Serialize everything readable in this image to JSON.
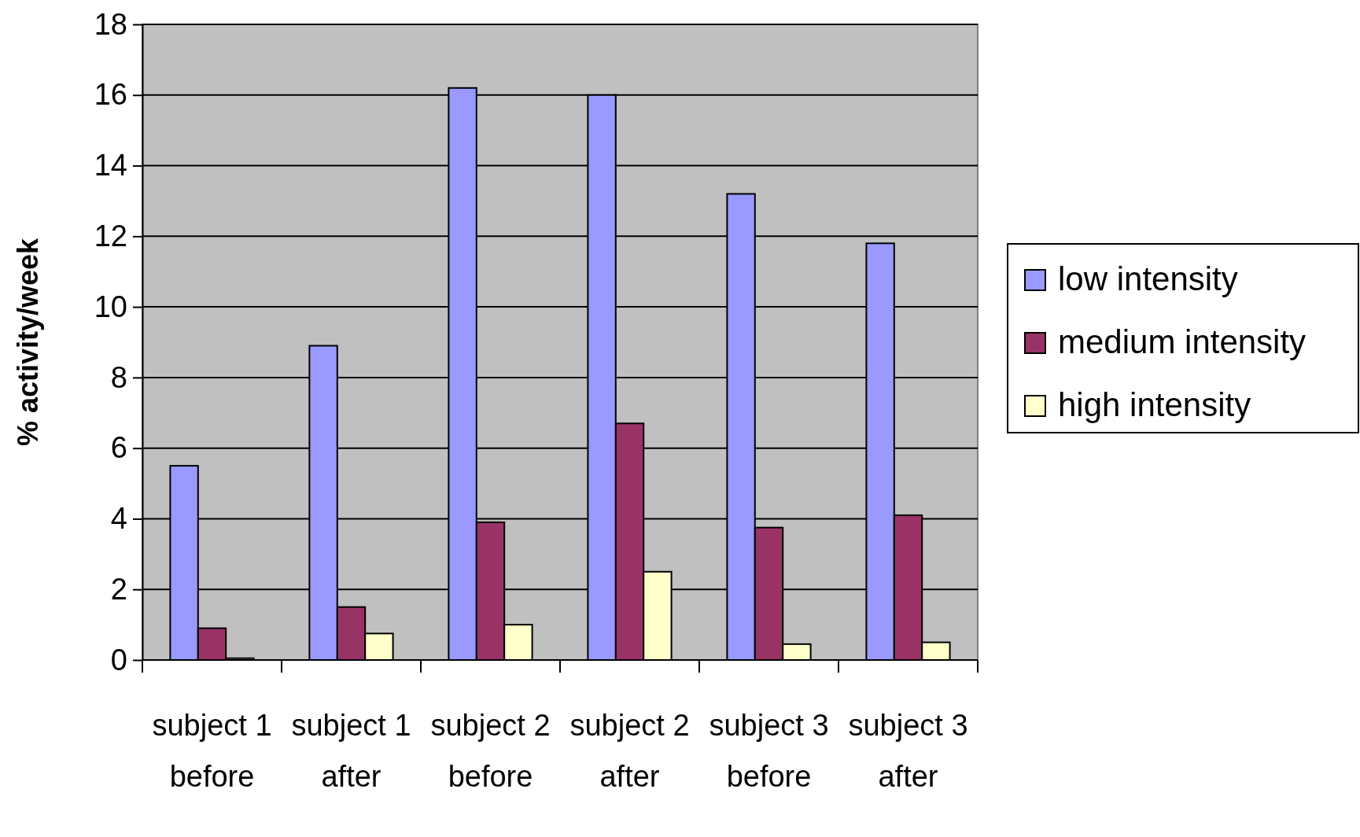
{
  "chart_data": {
    "type": "bar",
    "ylabel": "% activity/week",
    "categories": [
      "subject 1 before",
      "subject 1 after",
      "subject 2 before",
      "subject 2 after",
      "subject 3 before",
      "subject 3 after"
    ],
    "series": [
      {
        "name": "low intensity",
        "color": "#9999ff",
        "values": [
          5.5,
          8.9,
          16.2,
          16.0,
          13.2,
          11.8
        ]
      },
      {
        "name": "medium intensity",
        "color": "#993366",
        "values": [
          0.9,
          1.5,
          3.9,
          6.7,
          3.75,
          4.1
        ]
      },
      {
        "name": "high intensity",
        "color": "#ffffcc",
        "values": [
          0.05,
          0.75,
          1.0,
          2.5,
          0.45,
          0.5
        ]
      }
    ],
    "ylim": [
      0,
      18
    ],
    "yticks": [
      0,
      2,
      4,
      6,
      8,
      10,
      12,
      14,
      16,
      18
    ],
    "grid": "y",
    "legend": "right"
  }
}
